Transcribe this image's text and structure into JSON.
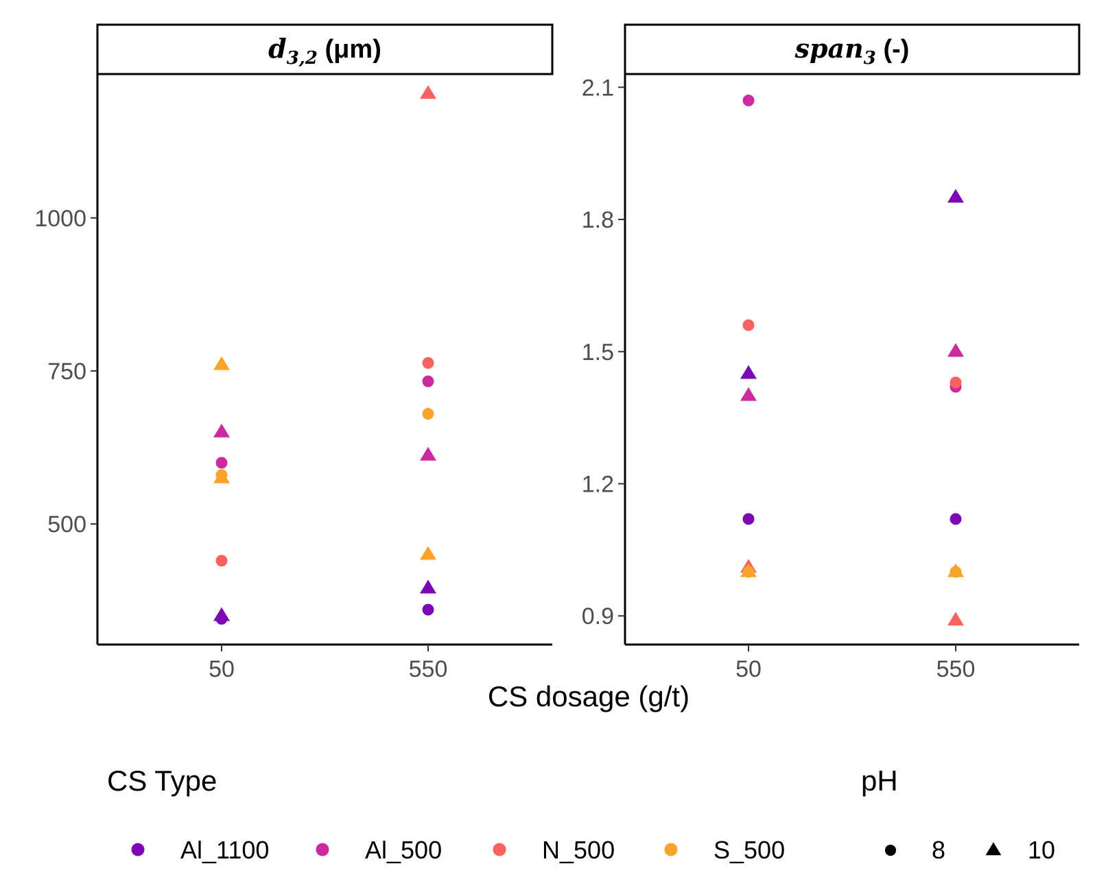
{
  "chart_data": [
    {
      "type": "scatter",
      "panel_id": "d32",
      "strip": {
        "math_main": "d",
        "math_sub": "3,2",
        "unit": " (μm)"
      },
      "x_categories": [
        "50",
        "550"
      ],
      "y_ticks": [
        500,
        750,
        1000
      ],
      "ylim": [
        303,
        1235
      ],
      "points": [
        {
          "cs_type": "Al_1100",
          "dosage": "50",
          "pH": "8",
          "value": 345
        },
        {
          "cs_type": "Al_1100",
          "dosage": "50",
          "pH": "10",
          "value": 350
        },
        {
          "cs_type": "Al_500",
          "dosage": "50",
          "pH": "8",
          "value": 600
        },
        {
          "cs_type": "Al_500",
          "dosage": "50",
          "pH": "10",
          "value": 650
        },
        {
          "cs_type": "N_500",
          "dosage": "50",
          "pH": "8",
          "value": 440
        },
        {
          "cs_type": "S_500",
          "dosage": "50",
          "pH": "8",
          "value": 580
        },
        {
          "cs_type": "S_500",
          "dosage": "50",
          "pH": "10",
          "value": 760
        },
        {
          "cs_type": "S_500",
          "dosage": "50",
          "pH": "10",
          "value": 575
        },
        {
          "cs_type": "Al_1100",
          "dosage": "550",
          "pH": "8",
          "value": 360
        },
        {
          "cs_type": "Al_1100",
          "dosage": "550",
          "pH": "10",
          "value": 395
        },
        {
          "cs_type": "Al_500",
          "dosage": "550",
          "pH": "8",
          "value": 733
        },
        {
          "cs_type": "Al_500",
          "dosage": "550",
          "pH": "10",
          "value": 612
        },
        {
          "cs_type": "N_500",
          "dosage": "550",
          "pH": "8",
          "value": 763
        },
        {
          "cs_type": "N_500",
          "dosage": "550",
          "pH": "10",
          "value": 1203
        },
        {
          "cs_type": "S_500",
          "dosage": "550",
          "pH": "8",
          "value": 680
        },
        {
          "cs_type": "S_500",
          "dosage": "550",
          "pH": "10",
          "value": 450
        }
      ]
    },
    {
      "type": "scatter",
      "panel_id": "span3",
      "strip": {
        "math_main": "span",
        "math_sub": "3",
        "unit": " (-)"
      },
      "x_categories": [
        "50",
        "550"
      ],
      "y_ticks": [
        0.9,
        1.2,
        1.5,
        1.8,
        2.1
      ],
      "y_tick_labels": [
        "0.9",
        "1.2",
        "1.5",
        "1.8",
        "2.1"
      ],
      "ylim": [
        0.835,
        2.13
      ],
      "points": [
        {
          "cs_type": "Al_1100",
          "dosage": "50",
          "pH": "8",
          "value": 1.12
        },
        {
          "cs_type": "Al_1100",
          "dosage": "50",
          "pH": "10",
          "value": 1.45
        },
        {
          "cs_type": "Al_500",
          "dosage": "50",
          "pH": "8",
          "value": 2.07
        },
        {
          "cs_type": "Al_500",
          "dosage": "50",
          "pH": "10",
          "value": 1.4
        },
        {
          "cs_type": "N_500",
          "dosage": "50",
          "pH": "8",
          "value": 1.56
        },
        {
          "cs_type": "N_500",
          "dosage": "50",
          "pH": "10",
          "value": 1.01
        },
        {
          "cs_type": "S_500",
          "dosage": "50",
          "pH": "8",
          "value": 1.0
        },
        {
          "cs_type": "S_500",
          "dosage": "50",
          "pH": "10",
          "value": 1.0
        },
        {
          "cs_type": "Al_1100",
          "dosage": "550",
          "pH": "8",
          "value": 1.12
        },
        {
          "cs_type": "Al_1100",
          "dosage": "550",
          "pH": "10",
          "value": 1.85
        },
        {
          "cs_type": "Al_500",
          "dosage": "550",
          "pH": "8",
          "value": 1.42
        },
        {
          "cs_type": "Al_500",
          "dosage": "550",
          "pH": "10",
          "value": 1.5
        },
        {
          "cs_type": "N_500",
          "dosage": "550",
          "pH": "8",
          "value": 1.43
        },
        {
          "cs_type": "N_500",
          "dosage": "550",
          "pH": "10",
          "value": 0.89
        },
        {
          "cs_type": "S_500",
          "dosage": "550",
          "pH": "8",
          "value": 1.0
        },
        {
          "cs_type": "S_500",
          "dosage": "550",
          "pH": "10",
          "value": 1.0
        }
      ]
    }
  ],
  "x_axis_title": "CS dosage (g/t)",
  "legend": {
    "color_title": "CS Type",
    "color_items": [
      {
        "key": "Al_1100",
        "label": "Al_1100",
        "color": "#7B08B4"
      },
      {
        "key": "Al_500",
        "label": "Al_500",
        "color": "#CC2A9E"
      },
      {
        "key": "N_500",
        "label": "N_500",
        "color": "#F9625E"
      },
      {
        "key": "S_500",
        "label": "S_500",
        "color": "#FBA32A"
      }
    ],
    "shape_title": "pH",
    "shape_items": [
      {
        "key": "8",
        "label": "8",
        "shape": "circle"
      },
      {
        "key": "10",
        "label": "10",
        "shape": "triangle"
      }
    ]
  }
}
